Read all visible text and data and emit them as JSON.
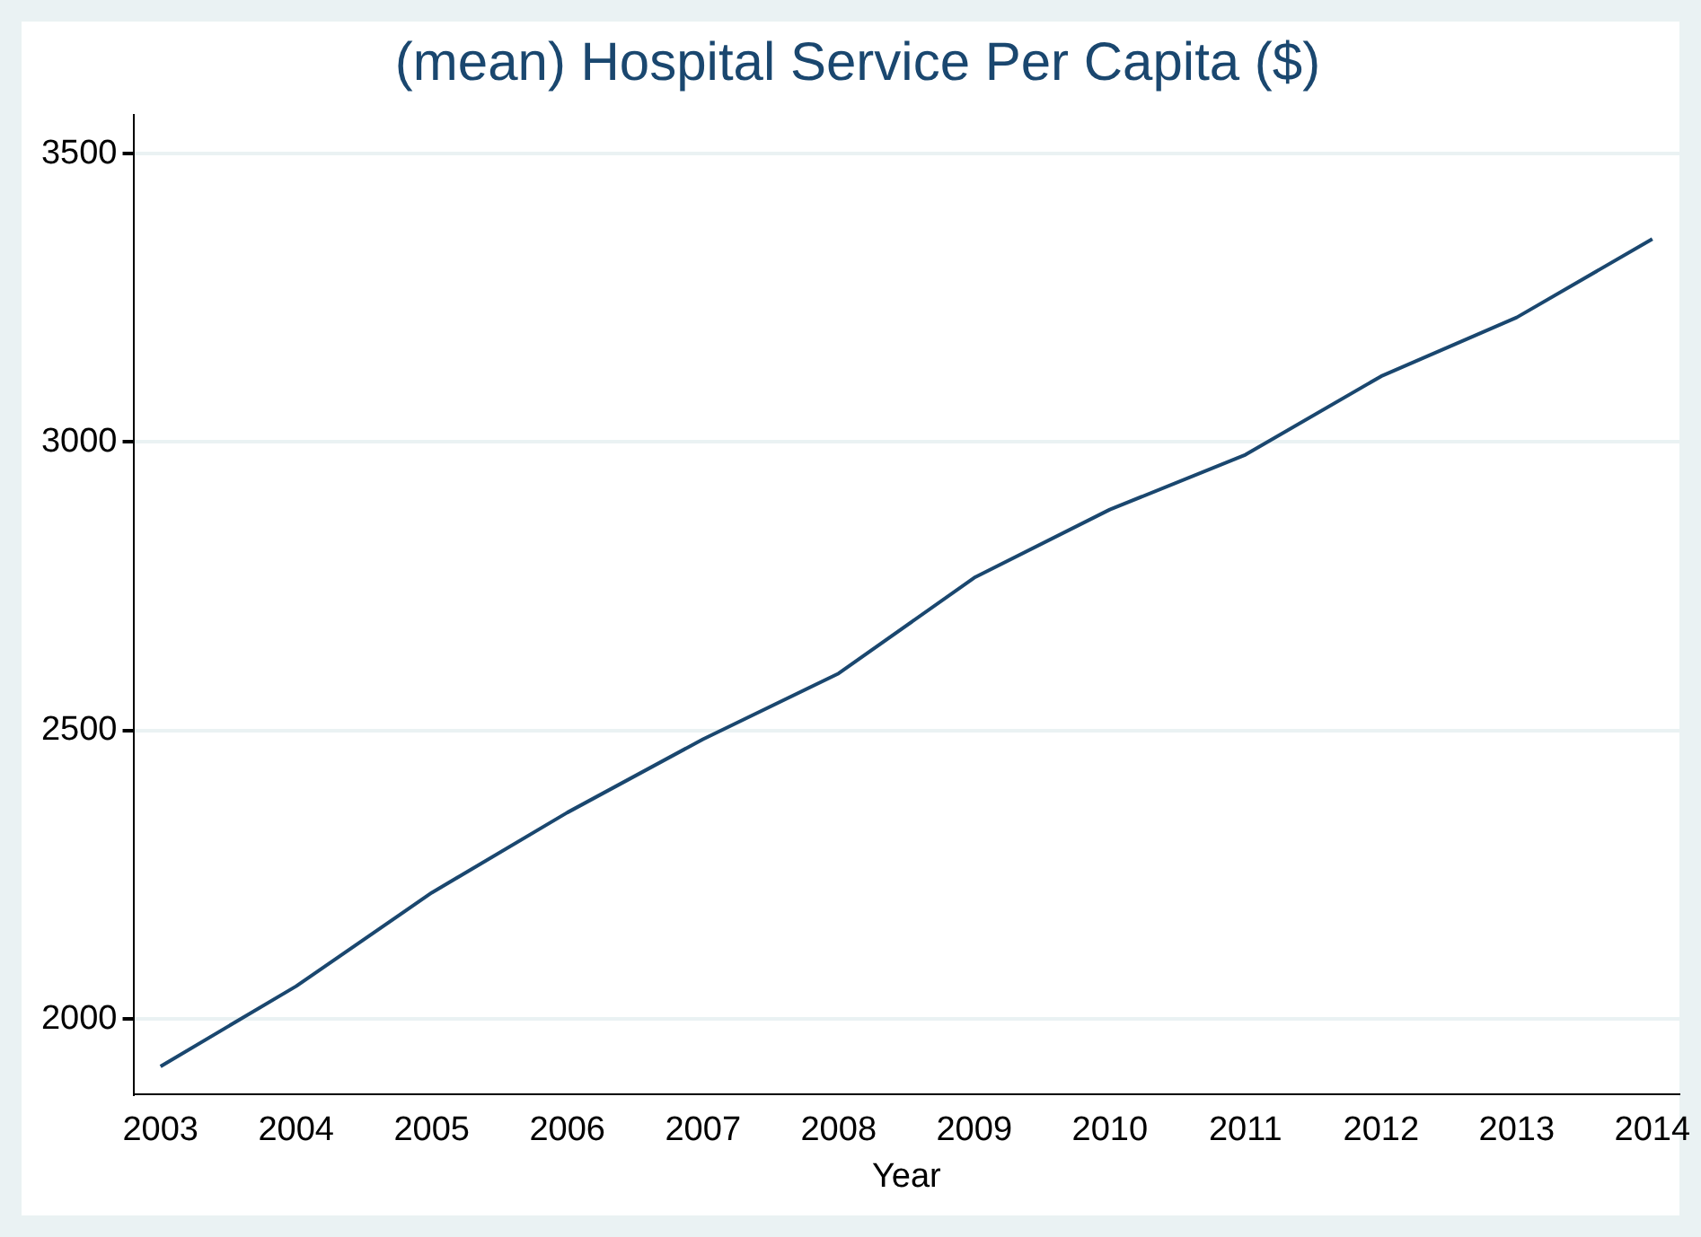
{
  "chart_data": {
    "type": "line",
    "title": "(mean) Hospital Service Per Capita ($)",
    "xlabel": "Year",
    "x": [
      2003,
      2004,
      2005,
      2006,
      2007,
      2008,
      2009,
      2010,
      2011,
      2012,
      2013,
      2014
    ],
    "series": [
      {
        "color": "#1a476f",
        "values": [
          1918,
          2057,
          2219,
          2358,
          2485,
          2599,
          2765,
          2883,
          2978,
          3114,
          3216,
          3352
        ]
      }
    ],
    "xlim": [
      2002.8,
      2014.2
    ],
    "xticks": [
      2003,
      2004,
      2005,
      2006,
      2007,
      2008,
      2009,
      2010,
      2011,
      2012,
      2013,
      2014
    ],
    "ylim": [
      1870,
      3567
    ],
    "yticks": [
      2000,
      2500,
      3000,
      3500
    ],
    "grid": "y",
    "legend": false,
    "marker": "none",
    "line_style": "solid"
  }
}
